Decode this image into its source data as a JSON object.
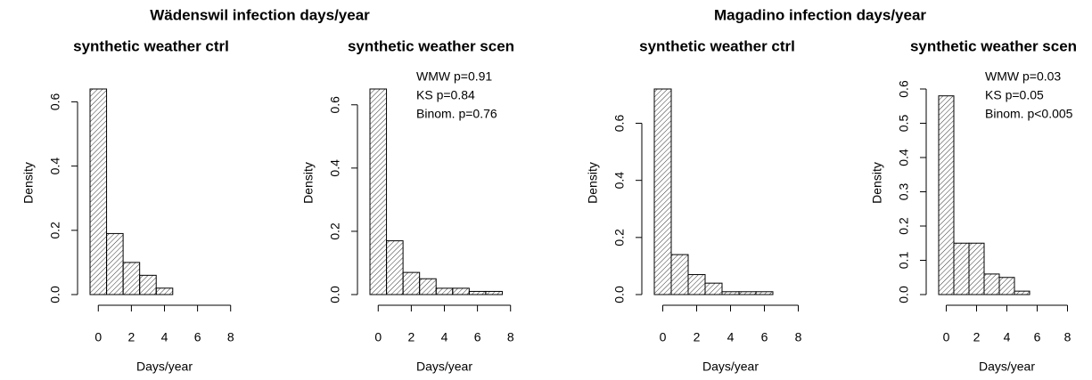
{
  "chart_data": [
    {
      "type": "histogram",
      "title": "Wädenswil infection days/year",
      "subtitle": "synthetic weather ctrl",
      "bins": [
        -0.5,
        0.5,
        1.5,
        2.5,
        3.5,
        4.5,
        5.5,
        6.5,
        7.5,
        8.5
      ],
      "values": [
        0.64,
        0.19,
        0.1,
        0.06,
        0.02,
        0,
        0,
        0,
        0
      ],
      "xlim": [
        -0.5,
        8.5
      ],
      "xticks": [
        0,
        2,
        4,
        6,
        8
      ],
      "xlabel": "Days/year",
      "ylim": [
        0,
        0.64
      ],
      "yticks": [
        {
          "value": 0,
          "label": "0.0"
        },
        0.2,
        0.4,
        0.6
      ],
      "ylabel": "Density"
    },
    {
      "type": "histogram",
      "subtitle": "synthetic weather scen",
      "bins": [
        -0.5,
        0.5,
        1.5,
        2.5,
        3.5,
        4.5,
        5.5,
        6.5,
        7.5,
        8.5
      ],
      "values": [
        0.65,
        0.17,
        0.07,
        0.05,
        0.02,
        0.02,
        0.01,
        0.01,
        0
      ],
      "xlim": [
        -0.5,
        8.5
      ],
      "xticks": [
        0,
        2,
        4,
        6,
        8
      ],
      "xlabel": "Days/year",
      "ylim": [
        0,
        0.65
      ],
      "yticks": [
        {
          "value": 0,
          "label": "0.0"
        },
        0.2,
        0.4,
        0.6
      ],
      "ylabel": "Density",
      "annotations": [
        "WMW p=0.91",
        "KS p=0.84",
        "Binom. p=0.76"
      ]
    },
    {
      "type": "histogram",
      "title": "Magadino infection days/year",
      "subtitle": "synthetic weather ctrl",
      "bins": [
        -0.5,
        0.5,
        1.5,
        2.5,
        3.5,
        4.5,
        5.5,
        6.5,
        7.5,
        8.5
      ],
      "values": [
        0.72,
        0.14,
        0.07,
        0.04,
        0.01,
        0.01,
        0.01,
        0,
        0
      ],
      "xlim": [
        -0.5,
        8.5
      ],
      "xticks": [
        0,
        2,
        4,
        6,
        8
      ],
      "xlabel": "Days/year",
      "ylim": [
        0,
        0.72
      ],
      "yticks": [
        {
          "value": 0,
          "label": "0.0"
        },
        0.2,
        0.4,
        0.6
      ],
      "ylabel": "Density"
    },
    {
      "type": "histogram",
      "subtitle": "synthetic weather scen",
      "bins": [
        -0.5,
        0.5,
        1.5,
        2.5,
        3.5,
        4.5,
        5.5,
        6.5,
        7.5,
        8.5
      ],
      "values": [
        0.58,
        0.15,
        0.15,
        0.06,
        0.05,
        0.01,
        0,
        0,
        0
      ],
      "xlim": [
        -0.5,
        8.5
      ],
      "xticks": [
        0,
        2,
        4,
        6,
        8
      ],
      "xlabel": "Days/year",
      "ylim": [
        0,
        0.6
      ],
      "yticks": [
        {
          "value": 0,
          "label": "0.0"
        },
        0.1,
        0.2,
        0.3,
        0.4,
        0.5,
        0.6
      ],
      "ylabel": "Density",
      "annotations": [
        "WMW p=0.03",
        "KS p=0.05",
        "Binom. p<0.005"
      ]
    }
  ]
}
